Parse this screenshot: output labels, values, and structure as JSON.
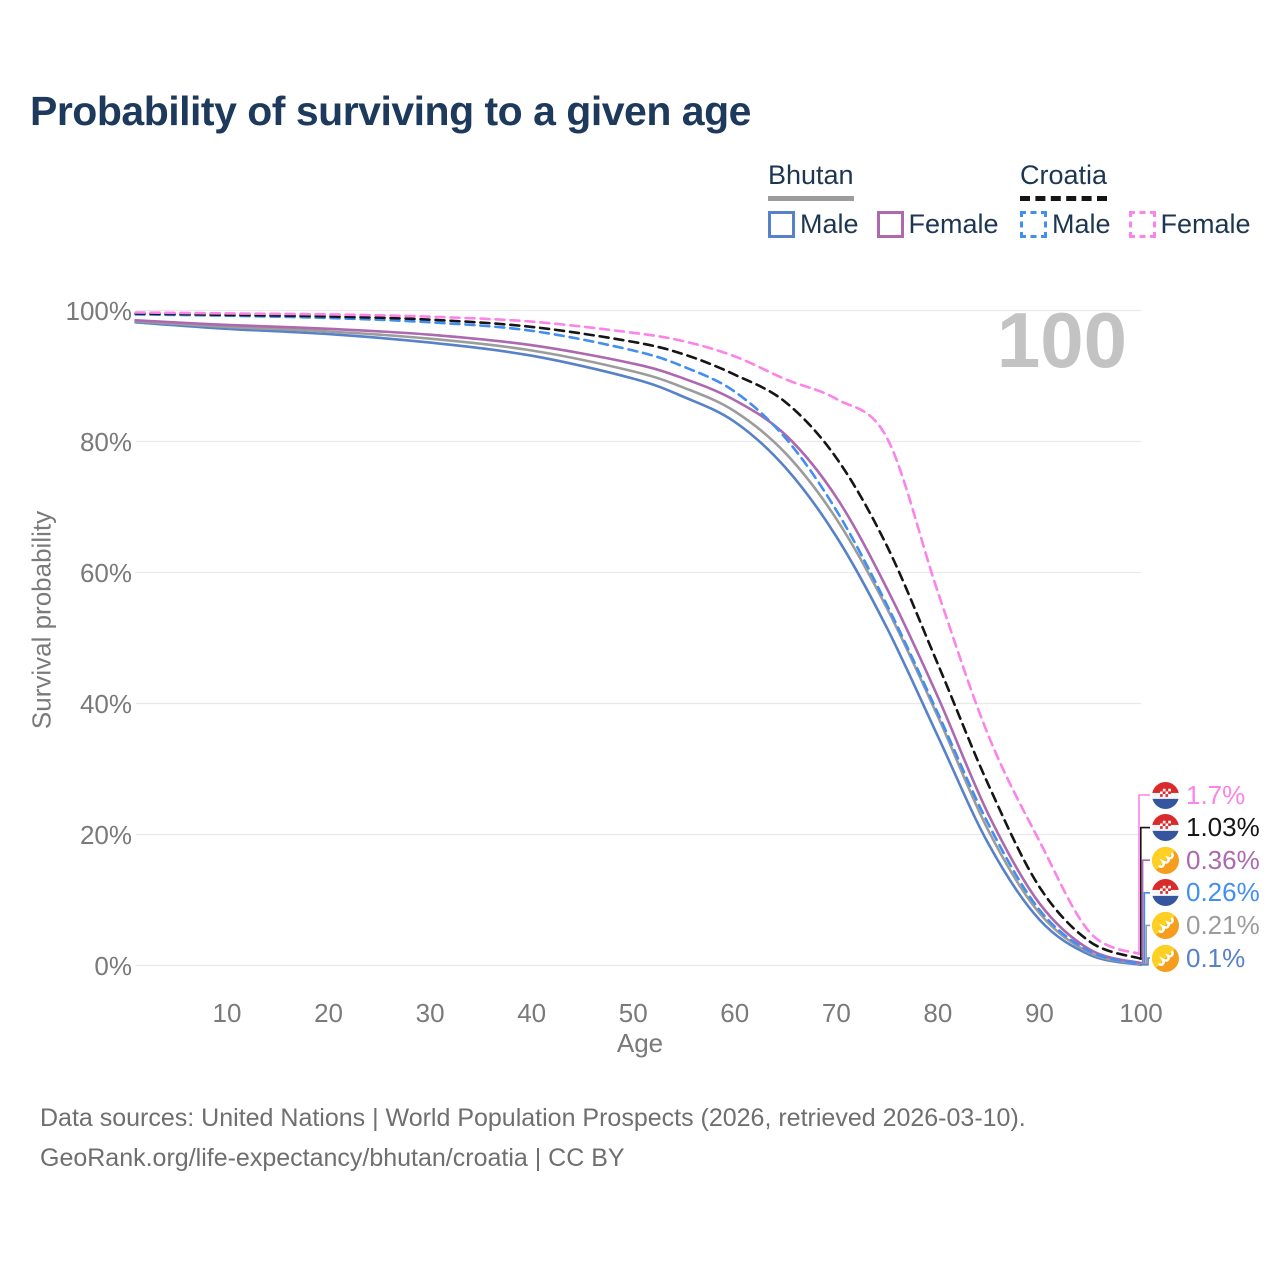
{
  "title": "Probability of surviving to a given age",
  "watermark": "100",
  "legend": {
    "groups": [
      {
        "label": "Bhutan",
        "underline_style": "solid",
        "underline_color": "#9c9c9c",
        "items": [
          {
            "label": "Male",
            "color": "#5781c8",
            "dashed": false
          },
          {
            "label": "Female",
            "color": "#ad68b0",
            "dashed": false
          }
        ]
      },
      {
        "label": "Croatia",
        "underline_style": "dashed",
        "underline_color": "#151515",
        "items": [
          {
            "label": "Male",
            "color": "#418ff0",
            "dashed": true
          },
          {
            "label": "Female",
            "color": "#fc83e9",
            "dashed": true
          }
        ]
      }
    ]
  },
  "axes": {
    "y_label": "Survival probability",
    "x_label": "Age",
    "y_ticks": [
      {
        "label": "100%",
        "value": 100
      },
      {
        "label": "80%",
        "value": 80
      },
      {
        "label": "60%",
        "value": 60
      },
      {
        "label": "40%",
        "value": 40
      },
      {
        "label": "20%",
        "value": 20
      },
      {
        "label": "0%",
        "value": 0
      }
    ],
    "x_ticks": [
      10,
      20,
      30,
      40,
      50,
      60,
      70,
      80,
      90,
      100
    ]
  },
  "end_labels": [
    {
      "series": "croatia_female",
      "flag": "croatia",
      "value": "1.7%",
      "color": "#fc83e9"
    },
    {
      "series": "croatia_total",
      "flag": "croatia",
      "value": "1.03%",
      "color": "#151515"
    },
    {
      "series": "bhutan_female",
      "flag": "bhutan",
      "value": "0.36%",
      "color": "#ad68b0"
    },
    {
      "series": "croatia_male",
      "flag": "croatia",
      "value": "0.26%",
      "color": "#418ff0"
    },
    {
      "series": "bhutan_total",
      "flag": "bhutan",
      "value": "0.21%",
      "color": "#9c9c9c"
    },
    {
      "series": "bhutan_male",
      "flag": "bhutan",
      "value": "0.1%",
      "color": "#5781c8"
    }
  ],
  "footer": {
    "line1": "Data sources: United Nations | World Population Prospects (2026, retrieved 2026-03-10).",
    "line2": "GeoRank.org/life-expectancy/bhutan/croatia | CC BY"
  },
  "chart_data": {
    "type": "line",
    "title": "Probability of surviving to a given age",
    "xlabel": "Age",
    "ylabel": "Survival probability",
    "xlim": [
      1,
      100
    ],
    "ylim": [
      0,
      100
    ],
    "y_unit": "%",
    "grid": "horizontal",
    "legend_position": "top-right",
    "x": [
      1,
      10,
      20,
      30,
      40,
      50,
      55,
      60,
      65,
      70,
      75,
      80,
      85,
      90,
      95,
      100
    ],
    "series": [
      {
        "key": "bhutan_male",
        "name": "Bhutan Male",
        "color": "#5781c8",
        "dashed": false,
        "values": [
          98.2,
          97.2,
          96.4,
          95.1,
          93.1,
          89.6,
          86.8,
          83.0,
          76.0,
          65.5,
          51.5,
          35.0,
          18.5,
          7.0,
          1.6,
          0.1
        ]
      },
      {
        "key": "bhutan_total",
        "name": "Bhutan",
        "color": "#9c9c9c",
        "dashed": false,
        "values": [
          98.35,
          97.5,
          96.8,
          95.7,
          93.9,
          90.7,
          88.2,
          84.6,
          78.2,
          68.2,
          54.5,
          38.0,
          20.5,
          8.0,
          1.9,
          0.21
        ]
      },
      {
        "key": "bhutan_female",
        "name": "Bhutan Female",
        "color": "#ad68b0",
        "dashed": false,
        "values": [
          98.5,
          97.8,
          97.2,
          96.3,
          94.7,
          91.9,
          89.6,
          86.3,
          81.0,
          71.5,
          57.5,
          41.0,
          23.0,
          9.5,
          2.4,
          0.36
        ]
      },
      {
        "key": "croatia_male",
        "name": "Croatia Male",
        "color": "#418ff0",
        "dashed": true,
        "values": [
          99.4,
          99.2,
          98.85,
          98.2,
          96.9,
          93.9,
          91.4,
          87.6,
          80.5,
          69.5,
          55.0,
          38.5,
          21.5,
          8.5,
          2.1,
          0.26
        ]
      },
      {
        "key": "croatia_total",
        "name": "Croatia",
        "color": "#151515",
        "dashed": true,
        "values": [
          99.55,
          99.35,
          99.1,
          98.6,
          97.5,
          95.2,
          93.3,
          90.2,
          86.0,
          77.5,
          64.0,
          46.0,
          27.5,
          12.0,
          3.6,
          1.03
        ]
      },
      {
        "key": "croatia_female",
        "name": "Croatia Female",
        "color": "#fc83e9",
        "dashed": true,
        "values": [
          99.7,
          99.55,
          99.4,
          99.05,
          98.3,
          96.6,
          95.3,
          93.0,
          89.5,
          86.5,
          80.5,
          57.0,
          35.0,
          19.0,
          5.0,
          1.7
        ]
      }
    ]
  }
}
